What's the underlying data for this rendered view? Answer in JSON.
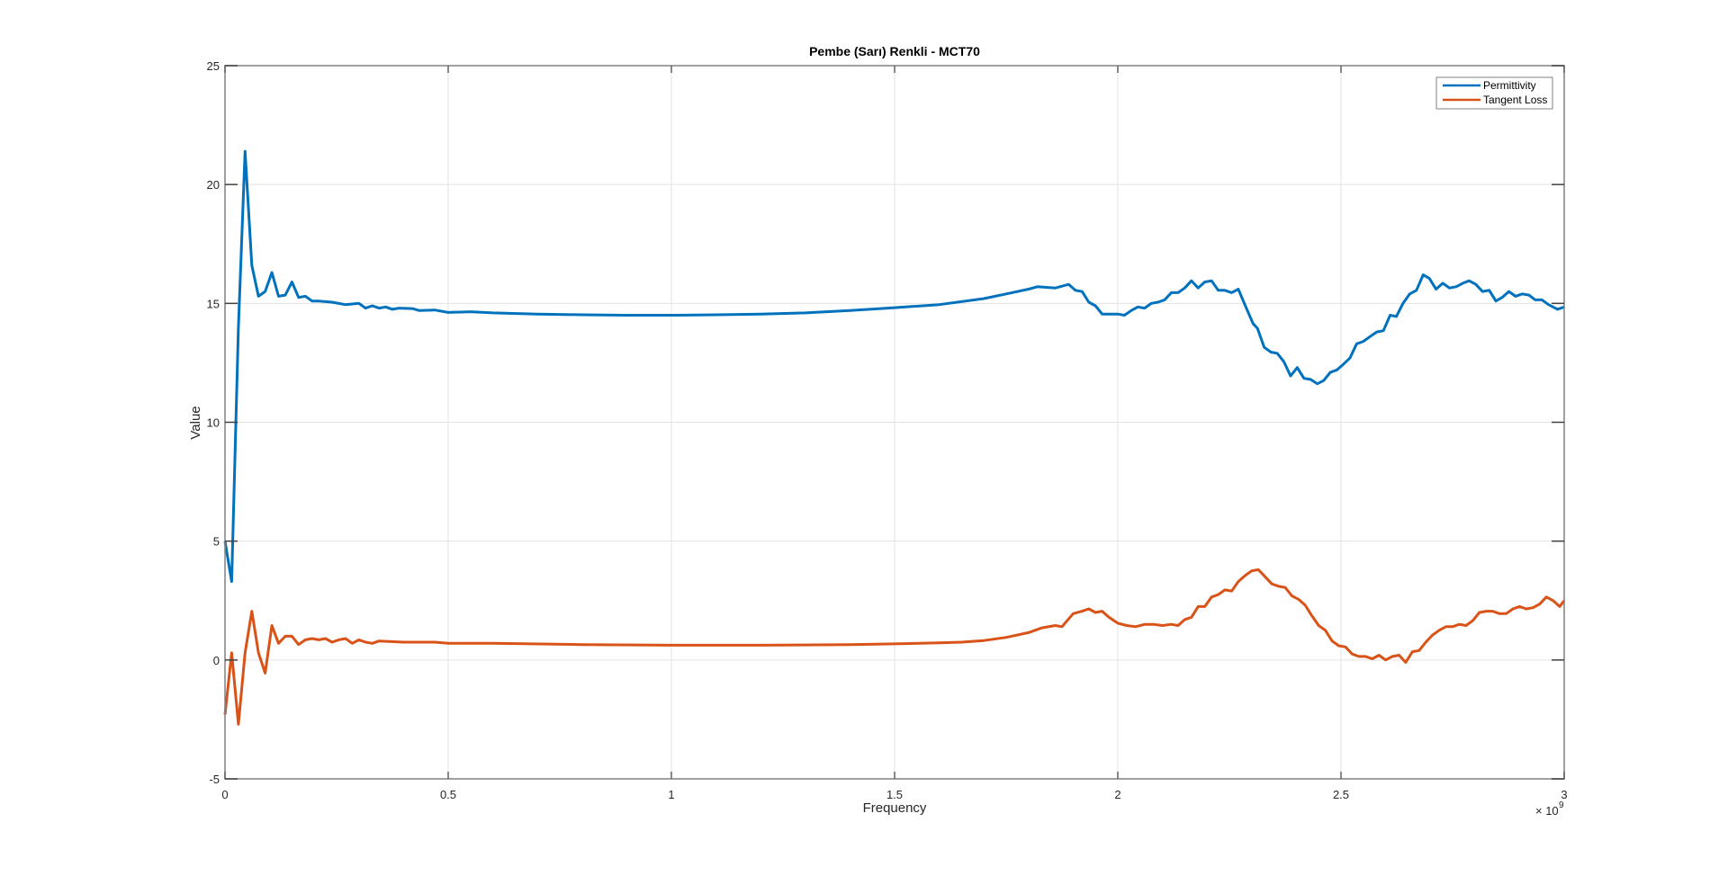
{
  "chart_data": {
    "type": "line",
    "title": "Pembe (Sarı) Renkli - MCT70",
    "xlabel": "Frequency",
    "ylabel": "Value",
    "x_exponent_label": "× 10",
    "x_exponent": "9",
    "xlim": [
      0,
      3
    ],
    "ylim": [
      -5,
      25
    ],
    "xticks": [
      "0",
      "0.5",
      "1",
      "1.5",
      "2",
      "2.5",
      "3"
    ],
    "yticks": [
      "-5",
      "0",
      "5",
      "10",
      "15",
      "20",
      "25"
    ],
    "grid": true,
    "legend_position": "top-right",
    "series": [
      {
        "name": "Permittivity",
        "color": "#0072BD",
        "points": [
          [
            0,
            5.0
          ],
          [
            0.015,
            3.3
          ],
          [
            0.03,
            14
          ],
          [
            0.045,
            21.4
          ],
          [
            0.06,
            16.6
          ],
          [
            0.075,
            15.3
          ],
          [
            0.09,
            15.5
          ],
          [
            0.105,
            16.3
          ],
          [
            0.12,
            15.3
          ],
          [
            0.135,
            15.35
          ],
          [
            0.15,
            15.9
          ],
          [
            0.165,
            15.25
          ],
          [
            0.18,
            15.3
          ],
          [
            0.195,
            15.1
          ],
          [
            0.21,
            15.1
          ],
          [
            0.24,
            15.05
          ],
          [
            0.27,
            14.95
          ],
          [
            0.3,
            15.0
          ],
          [
            0.315,
            14.8
          ],
          [
            0.33,
            14.9
          ],
          [
            0.345,
            14.8
          ],
          [
            0.36,
            14.85
          ],
          [
            0.375,
            14.75
          ],
          [
            0.39,
            14.8
          ],
          [
            0.42,
            14.78
          ],
          [
            0.435,
            14.7
          ],
          [
            0.47,
            14.72
          ],
          [
            0.5,
            14.62
          ],
          [
            0.55,
            14.65
          ],
          [
            0.6,
            14.6
          ],
          [
            0.7,
            14.55
          ],
          [
            0.8,
            14.52
          ],
          [
            0.9,
            14.5
          ],
          [
            1.0,
            14.5
          ],
          [
            1.1,
            14.52
          ],
          [
            1.2,
            14.55
          ],
          [
            1.3,
            14.6
          ],
          [
            1.4,
            14.7
          ],
          [
            1.5,
            14.82
          ],
          [
            1.6,
            14.95
          ],
          [
            1.7,
            15.2
          ],
          [
            1.75,
            15.4
          ],
          [
            1.8,
            15.6
          ],
          [
            1.82,
            15.7
          ],
          [
            1.86,
            15.65
          ],
          [
            1.89,
            15.8
          ],
          [
            1.905,
            15.55
          ],
          [
            1.92,
            15.5
          ],
          [
            1.935,
            15.05
          ],
          [
            1.95,
            14.9
          ],
          [
            1.965,
            14.55
          ],
          [
            1.98,
            14.55
          ],
          [
            2.0,
            14.55
          ],
          [
            2.015,
            14.5
          ],
          [
            2.03,
            14.7
          ],
          [
            2.045,
            14.85
          ],
          [
            2.06,
            14.8
          ],
          [
            2.075,
            15.0
          ],
          [
            2.09,
            15.05
          ],
          [
            2.105,
            15.15
          ],
          [
            2.12,
            15.45
          ],
          [
            2.135,
            15.45
          ],
          [
            2.15,
            15.65
          ],
          [
            2.165,
            15.95
          ],
          [
            2.18,
            15.65
          ],
          [
            2.195,
            15.9
          ],
          [
            2.21,
            15.95
          ],
          [
            2.225,
            15.55
          ],
          [
            2.24,
            15.55
          ],
          [
            2.255,
            15.45
          ],
          [
            2.27,
            15.6
          ],
          [
            2.288,
            14.8
          ],
          [
            2.303,
            14.15
          ],
          [
            2.313,
            13.95
          ],
          [
            2.328,
            13.15
          ],
          [
            2.343,
            12.95
          ],
          [
            2.357,
            12.9
          ],
          [
            2.372,
            12.55
          ],
          [
            2.387,
            11.95
          ],
          [
            2.402,
            12.3
          ],
          [
            2.417,
            11.85
          ],
          [
            2.432,
            11.8
          ],
          [
            2.447,
            11.62
          ],
          [
            2.461,
            11.75
          ],
          [
            2.476,
            12.1
          ],
          [
            2.491,
            12.2
          ],
          [
            2.506,
            12.45
          ],
          [
            2.52,
            12.7
          ],
          [
            2.535,
            13.3
          ],
          [
            2.55,
            13.4
          ],
          [
            2.565,
            13.6
          ],
          [
            2.58,
            13.8
          ],
          [
            2.595,
            13.85
          ],
          [
            2.61,
            14.5
          ],
          [
            2.624,
            14.45
          ],
          [
            2.639,
            15.0
          ],
          [
            2.654,
            15.4
          ],
          [
            2.669,
            15.55
          ],
          [
            2.684,
            16.2
          ],
          [
            2.698,
            16.05
          ],
          [
            2.713,
            15.6
          ],
          [
            2.728,
            15.85
          ],
          [
            2.743,
            15.65
          ],
          [
            2.758,
            15.7
          ],
          [
            2.773,
            15.85
          ],
          [
            2.787,
            15.95
          ],
          [
            2.802,
            15.8
          ],
          [
            2.817,
            15.5
          ],
          [
            2.832,
            15.55
          ],
          [
            2.847,
            15.1
          ],
          [
            2.861,
            15.25
          ],
          [
            2.876,
            15.5
          ],
          [
            2.891,
            15.3
          ],
          [
            2.906,
            15.4
          ],
          [
            2.921,
            15.35
          ],
          [
            2.935,
            15.15
          ],
          [
            2.95,
            15.15
          ],
          [
            2.965,
            14.95
          ],
          [
            2.985,
            14.75
          ],
          [
            3.0,
            14.85
          ]
        ]
      },
      {
        "name": "Tangent Loss",
        "color": "#D95319",
        "points": [
          [
            0,
            -2.3
          ],
          [
            0.015,
            0.3
          ],
          [
            0.03,
            -2.7
          ],
          [
            0.045,
            0.3
          ],
          [
            0.06,
            2.05
          ],
          [
            0.075,
            0.3
          ],
          [
            0.09,
            -0.55
          ],
          [
            0.105,
            1.45
          ],
          [
            0.12,
            0.7
          ],
          [
            0.135,
            1.0
          ],
          [
            0.15,
            1.0
          ],
          [
            0.165,
            0.65
          ],
          [
            0.18,
            0.85
          ],
          [
            0.195,
            0.9
          ],
          [
            0.21,
            0.85
          ],
          [
            0.225,
            0.9
          ],
          [
            0.24,
            0.75
          ],
          [
            0.255,
            0.85
          ],
          [
            0.27,
            0.9
          ],
          [
            0.285,
            0.7
          ],
          [
            0.3,
            0.85
          ],
          [
            0.315,
            0.75
          ],
          [
            0.33,
            0.7
          ],
          [
            0.345,
            0.8
          ],
          [
            0.4,
            0.75
          ],
          [
            0.47,
            0.75
          ],
          [
            0.5,
            0.7
          ],
          [
            0.6,
            0.7
          ],
          [
            0.8,
            0.65
          ],
          [
            1.0,
            0.62
          ],
          [
            1.2,
            0.62
          ],
          [
            1.4,
            0.65
          ],
          [
            1.5,
            0.68
          ],
          [
            1.6,
            0.72
          ],
          [
            1.65,
            0.75
          ],
          [
            1.7,
            0.82
          ],
          [
            1.75,
            0.95
          ],
          [
            1.8,
            1.15
          ],
          [
            1.83,
            1.35
          ],
          [
            1.86,
            1.45
          ],
          [
            1.875,
            1.4
          ],
          [
            1.9,
            1.95
          ],
          [
            1.92,
            2.05
          ],
          [
            1.935,
            2.15
          ],
          [
            1.95,
            2.0
          ],
          [
            1.965,
            2.05
          ],
          [
            1.98,
            1.8
          ],
          [
            2.0,
            1.55
          ],
          [
            2.02,
            1.45
          ],
          [
            2.04,
            1.4
          ],
          [
            2.06,
            1.5
          ],
          [
            2.08,
            1.5
          ],
          [
            2.1,
            1.45
          ],
          [
            2.12,
            1.5
          ],
          [
            2.135,
            1.45
          ],
          [
            2.15,
            1.7
          ],
          [
            2.165,
            1.8
          ],
          [
            2.18,
            2.25
          ],
          [
            2.195,
            2.25
          ],
          [
            2.21,
            2.65
          ],
          [
            2.225,
            2.75
          ],
          [
            2.24,
            2.95
          ],
          [
            2.255,
            2.9
          ],
          [
            2.27,
            3.3
          ],
          [
            2.285,
            3.55
          ],
          [
            2.3,
            3.75
          ],
          [
            2.315,
            3.8
          ],
          [
            2.33,
            3.5
          ],
          [
            2.345,
            3.2
          ],
          [
            2.36,
            3.1
          ],
          [
            2.375,
            3.05
          ],
          [
            2.39,
            2.7
          ],
          [
            2.405,
            2.55
          ],
          [
            2.42,
            2.3
          ],
          [
            2.435,
            1.85
          ],
          [
            2.45,
            1.45
          ],
          [
            2.465,
            1.25
          ],
          [
            2.48,
            0.8
          ],
          [
            2.495,
            0.6
          ],
          [
            2.51,
            0.55
          ],
          [
            2.525,
            0.25
          ],
          [
            2.54,
            0.15
          ],
          [
            2.555,
            0.15
          ],
          [
            2.57,
            0.05
          ],
          [
            2.585,
            0.2
          ],
          [
            2.6,
            0.0
          ],
          [
            2.615,
            0.15
          ],
          [
            2.63,
            0.2
          ],
          [
            2.645,
            -0.1
          ],
          [
            2.66,
            0.35
          ],
          [
            2.675,
            0.4
          ],
          [
            2.69,
            0.75
          ],
          [
            2.705,
            1.05
          ],
          [
            2.72,
            1.25
          ],
          [
            2.735,
            1.4
          ],
          [
            2.75,
            1.4
          ],
          [
            2.765,
            1.5
          ],
          [
            2.78,
            1.45
          ],
          [
            2.795,
            1.65
          ],
          [
            2.81,
            2.0
          ],
          [
            2.825,
            2.05
          ],
          [
            2.84,
            2.05
          ],
          [
            2.855,
            1.95
          ],
          [
            2.87,
            1.95
          ],
          [
            2.885,
            2.15
          ],
          [
            2.9,
            2.25
          ],
          [
            2.915,
            2.15
          ],
          [
            2.93,
            2.2
          ],
          [
            2.945,
            2.35
          ],
          [
            2.96,
            2.65
          ],
          [
            2.975,
            2.5
          ],
          [
            2.99,
            2.25
          ],
          [
            3.0,
            2.5
          ]
        ]
      }
    ]
  }
}
